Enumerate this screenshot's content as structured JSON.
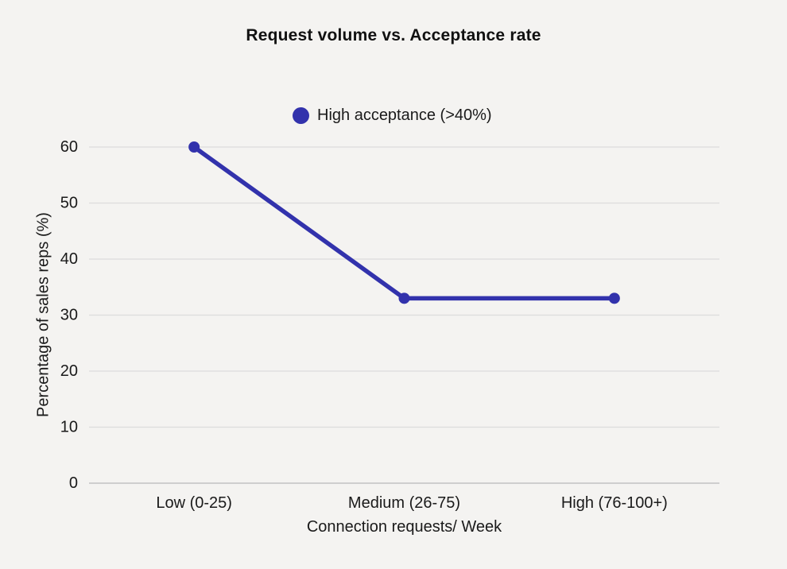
{
  "chart_data": {
    "type": "line",
    "title": "Request volume vs. Acceptance rate",
    "categories": [
      "Low (0-25)",
      "Medium (26-75)",
      "High (76-100+)"
    ],
    "series": [
      {
        "name": "High acceptance (>40%)",
        "values": [
          60,
          33,
          33
        ],
        "color": "#3232AC",
        "marker": "circle"
      }
    ],
    "xlabel": "Connection requests/ Week",
    "ylabel": "Percentage of sales reps (%)",
    "ylim": [
      0,
      60
    ],
    "yticks": [
      0,
      10,
      20,
      30,
      40,
      50,
      60
    ],
    "grid": true,
    "legend_position": "top-center"
  },
  "colors": {
    "background": "#F4F3F1",
    "gridline": "#DCDCDC",
    "axis_line": "#C2C2C2",
    "text": "#1A1A1A",
    "accent": "#3232AC"
  }
}
